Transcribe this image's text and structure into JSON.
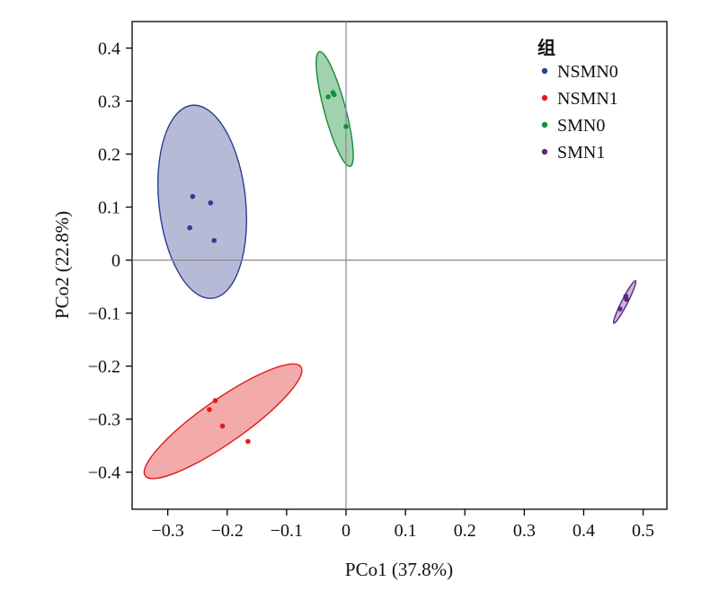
{
  "chart_data": {
    "type": "scatter",
    "xlabel": "PCo1 (37.8%)",
    "ylabel": "PCo2 (22.8%)",
    "xlim": [
      -0.36,
      0.54
    ],
    "ylim": [
      -0.47,
      0.45
    ],
    "xticks": [
      -0.3,
      -0.2,
      -0.1,
      0,
      0.1,
      0.2,
      0.3,
      0.4,
      0.5
    ],
    "xtick_labels": [
      "−0.3",
      "−0.2",
      "−0.1",
      "0",
      "0.1",
      "0.2",
      "0.3",
      "0.4",
      "0.5"
    ],
    "yticks": [
      0.4,
      0.3,
      0.2,
      0.1,
      0,
      -0.1,
      -0.2,
      -0.3,
      -0.4
    ],
    "ytick_labels": [
      "0.4",
      "0.3",
      "0.2",
      "0.1",
      "0",
      "−0.1",
      "−0.2",
      "−0.3",
      "−0.4"
    ],
    "reference_lines": {
      "x": 0,
      "y": 0
    },
    "grid": false,
    "legend": {
      "title": "组",
      "placement": "top-right"
    },
    "series": [
      {
        "name": "NSMN0",
        "color": "#2a3f8f",
        "fill": "#a9aed0",
        "x": [
          -0.258,
          -0.228,
          -0.263,
          -0.222
        ],
        "y": [
          0.12,
          0.108,
          0.061,
          0.037
        ],
        "ellipse": {
          "cx": -0.242,
          "cy": 0.11,
          "rx": 0.073,
          "ry": 0.183,
          "angle": -6
        }
      },
      {
        "name": "NSMN1",
        "color": "#e01b1b",
        "fill": "#f19b9b",
        "x": [
          -0.22,
          -0.23,
          -0.208,
          -0.165
        ],
        "y": [
          -0.265,
          -0.282,
          -0.313,
          -0.342
        ],
        "ellipse": {
          "cx": -0.207,
          "cy": -0.304,
          "rx": 0.16,
          "ry": 0.041,
          "angle": -35
        }
      },
      {
        "name": "SMN0",
        "color": "#1a8a3c",
        "fill": "#8fcaa0",
        "x": [
          -0.03,
          -0.022,
          -0.02,
          0.0
        ],
        "y": [
          0.308,
          0.316,
          0.312,
          0.252
        ],
        "ellipse": {
          "cx": -0.019,
          "cy": 0.285,
          "rx": 0.018,
          "ry": 0.112,
          "angle": -15
        }
      },
      {
        "name": "SMN1",
        "color": "#5b2a7a",
        "fill": "#c7a6d8",
        "x": [
          0.471,
          0.472,
          0.461
        ],
        "y": [
          -0.068,
          -0.074,
          -0.092
        ],
        "ellipse": {
          "cx": 0.469,
          "cy": -0.079,
          "rx": 0.005,
          "ry": 0.045,
          "angle": 27
        }
      }
    ]
  }
}
